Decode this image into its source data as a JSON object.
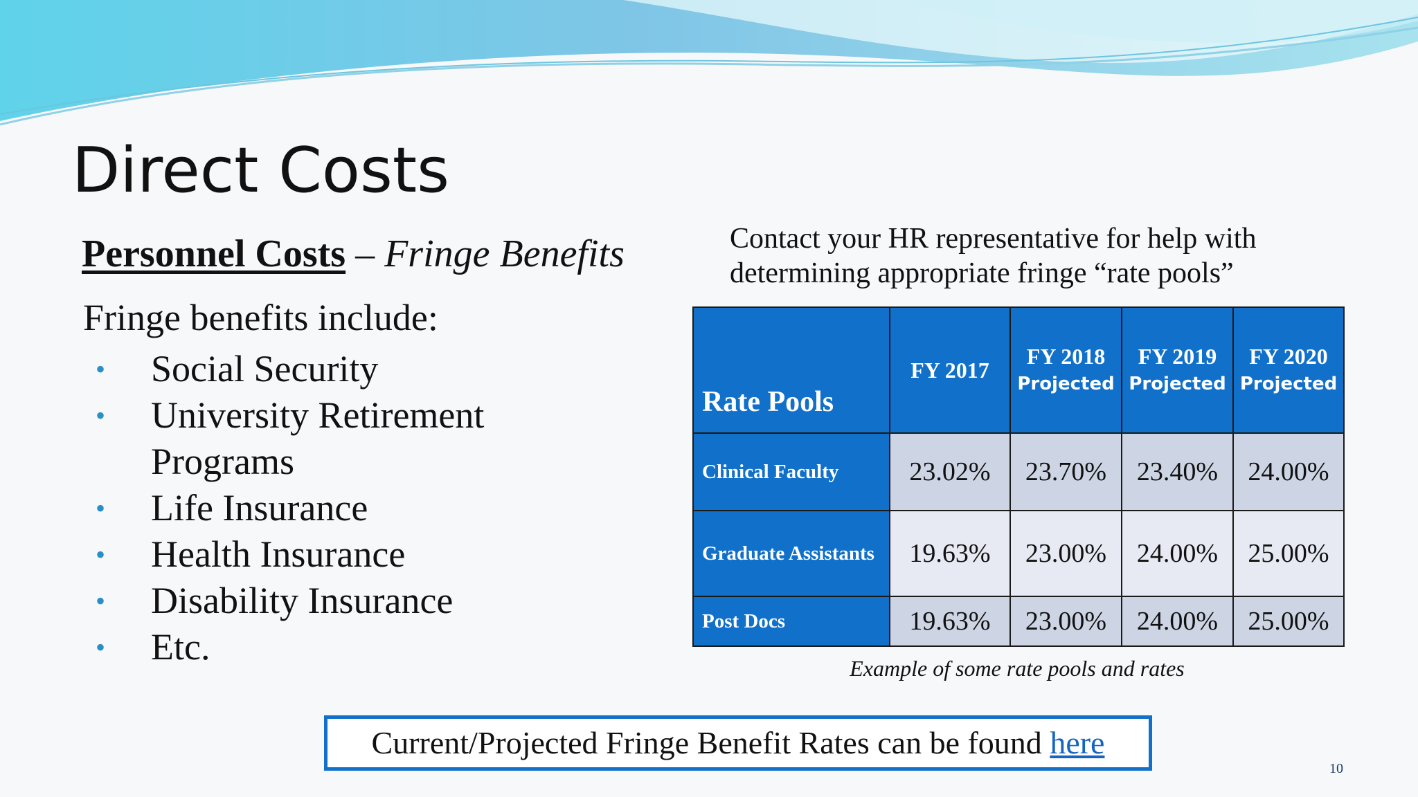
{
  "slide": {
    "title": "Direct Costs",
    "subhead_bold": "Personnel Costs",
    "subhead_sep": " – ",
    "subhead_italic": "Fringe Benefits",
    "intro": "Fringe benefits include:",
    "bullets": [
      "Social Security",
      "University Retirement Programs",
      "Life Insurance",
      "Health Insurance",
      "Disability Insurance",
      "Etc."
    ],
    "contact_line1": "Contact your HR representative for help with",
    "contact_line2": "determining appropriate fringe “rate pools”",
    "table": {
      "corner_label": "Rate Pools",
      "columns": [
        {
          "fy": "FY 2017",
          "note": ""
        },
        {
          "fy": "FY 2018",
          "note": "Projected"
        },
        {
          "fy": "FY 2019",
          "note": "Projected"
        },
        {
          "fy": "FY 2020",
          "note": "Projected"
        }
      ],
      "rows": [
        {
          "pool": "Clinical Faculty",
          "values": [
            "23.02%",
            "23.70%",
            "23.40%",
            "24.00%"
          ]
        },
        {
          "pool": "Graduate Assistants",
          "values": [
            "19.63%",
            "23.00%",
            "24.00%",
            "25.00%"
          ]
        },
        {
          "pool": "Post Docs",
          "values": [
            "19.63%",
            "23.00%",
            "24.00%",
            "25.00%"
          ]
        }
      ]
    },
    "caption": "Example of some rate pools and rates",
    "callout_text": "Current/Projected Fringe Benefit Rates can be found ",
    "callout_link": "here",
    "page_number": "10",
    "colors": {
      "table_header_bg": "#1170c9",
      "table_dark_cell": "#cdd5e4",
      "table_light_cell": "#e7eaf3",
      "bullet": "#2a8fc8",
      "link": "#1565c0"
    }
  }
}
